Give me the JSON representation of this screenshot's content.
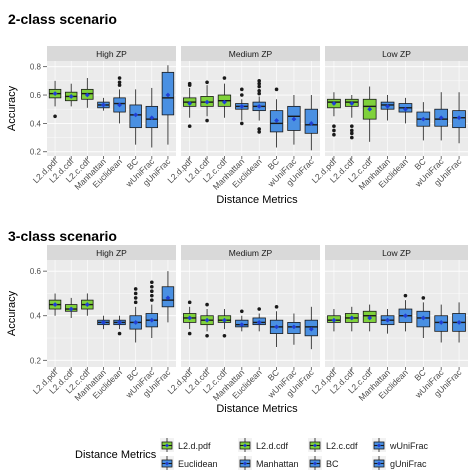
{
  "figure": {
    "legend_title": "Distance Metrics",
    "legend_items": [
      {
        "label": "L2.d.pdf",
        "color": "#7fd13b"
      },
      {
        "label": "L2.d.cdf",
        "color": "#7fd13b"
      },
      {
        "label": "L2.c.cdf",
        "color": "#7fd13b"
      },
      {
        "label": "wUniFrac",
        "color": "#4a90e2"
      },
      {
        "label": "Euclidean",
        "color": "#4a90e2"
      },
      {
        "label": "Manhattan",
        "color": "#4a90e2"
      },
      {
        "label": "BC",
        "color": "#4a90e2"
      },
      {
        "label": "gUniFrac",
        "color": "#4a90e2"
      }
    ],
    "colors": {
      "l2": "#7fd13b",
      "other": "#4a90e2",
      "strip_bg": "#d9d9d9",
      "panel_bg": "#ebebeb",
      "mean_marker": "#1f3fd6"
    }
  },
  "chart_data": [
    {
      "type": "box",
      "title": "2-class scenario",
      "xlabel": "Distance Metrics",
      "ylabel": "Accuracy",
      "ylim": [
        0.17,
        0.84
      ],
      "yticks": [
        0.2,
        0.4,
        0.6,
        0.8
      ],
      "facets": [
        "High ZP",
        "Medium ZP",
        "Low ZP"
      ],
      "categories": [
        "L2.d.pdf",
        "L2.d.cdf",
        "L2.c.cdf",
        "Manhattan",
        "Euclidean",
        "BC",
        "wUniFrac",
        "gUniFrac"
      ],
      "panels": [
        {
          "facet": "High ZP",
          "boxes": [
            {
              "min": 0.52,
              "q1": 0.58,
              "median": 0.61,
              "q3": 0.64,
              "max": 0.7,
              "mean": 0.61,
              "outliers": [
                0.45
              ]
            },
            {
              "min": 0.52,
              "q1": 0.56,
              "median": 0.59,
              "q3": 0.62,
              "max": 0.68,
              "mean": 0.59,
              "outliers": []
            },
            {
              "min": 0.51,
              "q1": 0.57,
              "median": 0.61,
              "q3": 0.64,
              "max": 0.72,
              "mean": 0.6,
              "outliers": []
            },
            {
              "min": 0.49,
              "q1": 0.51,
              "median": 0.53,
              "q3": 0.55,
              "max": 0.58,
              "mean": 0.53,
              "outliers": []
            },
            {
              "min": 0.4,
              "q1": 0.48,
              "median": 0.54,
              "q3": 0.58,
              "max": 0.64,
              "mean": 0.53,
              "outliers": [
                0.67,
                0.69,
                0.72
              ]
            },
            {
              "min": 0.25,
              "q1": 0.37,
              "median": 0.46,
              "q3": 0.53,
              "max": 0.64,
              "mean": 0.46,
              "outliers": []
            },
            {
              "min": 0.23,
              "q1": 0.37,
              "median": 0.43,
              "q3": 0.52,
              "max": 0.65,
              "mean": 0.44,
              "outliers": []
            },
            {
              "min": 0.25,
              "q1": 0.46,
              "median": 0.58,
              "q3": 0.76,
              "max": 0.81,
              "mean": 0.6,
              "outliers": []
            }
          ]
        },
        {
          "facet": "Medium ZP",
          "boxes": [
            {
              "min": 0.44,
              "q1": 0.52,
              "median": 0.55,
              "q3": 0.58,
              "max": 0.65,
              "mean": 0.54,
              "outliers": [
                0.67,
                0.68,
                0.38
              ]
            },
            {
              "min": 0.45,
              "q1": 0.52,
              "median": 0.55,
              "q3": 0.59,
              "max": 0.67,
              "mean": 0.55,
              "outliers": [
                0.69,
                0.42
              ]
            },
            {
              "min": 0.44,
              "q1": 0.52,
              "median": 0.56,
              "q3": 0.6,
              "max": 0.68,
              "mean": 0.55,
              "outliers": [
                0.72
              ]
            },
            {
              "min": 0.42,
              "q1": 0.5,
              "median": 0.52,
              "q3": 0.54,
              "max": 0.57,
              "mean": 0.52,
              "outliers": [
                0.6,
                0.64,
                0.4
              ]
            },
            {
              "min": 0.42,
              "q1": 0.49,
              "median": 0.52,
              "q3": 0.55,
              "max": 0.59,
              "mean": 0.52,
              "outliers": [
                0.61,
                0.63,
                0.66,
                0.68,
                0.7,
                0.36,
                0.34
              ]
            },
            {
              "min": 0.23,
              "q1": 0.34,
              "median": 0.4,
              "q3": 0.49,
              "max": 0.57,
              "mean": 0.42,
              "outliers": [
                0.64
              ]
            },
            {
              "min": 0.25,
              "q1": 0.35,
              "median": 0.45,
              "q3": 0.52,
              "max": 0.6,
              "mean": 0.43,
              "outliers": []
            },
            {
              "min": 0.21,
              "q1": 0.33,
              "median": 0.39,
              "q3": 0.5,
              "max": 0.6,
              "mean": 0.4,
              "outliers": []
            }
          ]
        },
        {
          "facet": "Low ZP",
          "boxes": [
            {
              "min": 0.45,
              "q1": 0.51,
              "median": 0.55,
              "q3": 0.57,
              "max": 0.62,
              "mean": 0.54,
              "outliers": [
                0.38,
                0.35,
                0.32
              ]
            },
            {
              "min": 0.44,
              "q1": 0.52,
              "median": 0.55,
              "q3": 0.57,
              "max": 0.6,
              "mean": 0.54,
              "outliers": [
                0.38,
                0.35,
                0.33,
                0.3
              ]
            },
            {
              "min": 0.27,
              "q1": 0.43,
              "median": 0.52,
              "q3": 0.57,
              "max": 0.66,
              "mean": 0.5,
              "outliers": []
            },
            {
              "min": 0.42,
              "q1": 0.5,
              "median": 0.53,
              "q3": 0.55,
              "max": 0.6,
              "mean": 0.52,
              "outliers": []
            },
            {
              "min": 0.4,
              "q1": 0.48,
              "median": 0.51,
              "q3": 0.54,
              "max": 0.58,
              "mean": 0.5,
              "outliers": []
            },
            {
              "min": 0.28,
              "q1": 0.38,
              "median": 0.43,
              "q3": 0.48,
              "max": 0.55,
              "mean": 0.43,
              "outliers": []
            },
            {
              "min": 0.28,
              "q1": 0.38,
              "median": 0.43,
              "q3": 0.5,
              "max": 0.62,
              "mean": 0.44,
              "outliers": []
            },
            {
              "min": 0.26,
              "q1": 0.37,
              "median": 0.44,
              "q3": 0.49,
              "max": 0.62,
              "mean": 0.44,
              "outliers": []
            }
          ]
        }
      ]
    },
    {
      "type": "box",
      "title": "3-class scenario",
      "xlabel": "Distance Metrics",
      "ylabel": "Accuracy",
      "ylim": [
        0.17,
        0.65
      ],
      "yticks": [
        0.2,
        0.4,
        0.6
      ],
      "facets": [
        "High ZP",
        "Medium ZP",
        "Low ZP"
      ],
      "categories": [
        "L2.d.pdf",
        "L2.d.cdf",
        "L2.c.cdf",
        "Manhattan",
        "Euclidean",
        "BC",
        "wUniFrac",
        "gUniFrac"
      ],
      "panels": [
        {
          "facet": "High ZP",
          "boxes": [
            {
              "min": 0.4,
              "q1": 0.43,
              "median": 0.45,
              "q3": 0.47,
              "max": 0.5,
              "mean": 0.45,
              "outliers": []
            },
            {
              "min": 0.39,
              "q1": 0.42,
              "median": 0.43,
              "q3": 0.45,
              "max": 0.48,
              "mean": 0.43,
              "outliers": []
            },
            {
              "min": 0.4,
              "q1": 0.43,
              "median": 0.45,
              "q3": 0.47,
              "max": 0.5,
              "mean": 0.45,
              "outliers": []
            },
            {
              "min": 0.34,
              "q1": 0.36,
              "median": 0.37,
              "q3": 0.38,
              "max": 0.4,
              "mean": 0.37,
              "outliers": []
            },
            {
              "min": 0.34,
              "q1": 0.36,
              "median": 0.37,
              "q3": 0.38,
              "max": 0.4,
              "mean": 0.37,
              "outliers": [
                0.32
              ]
            },
            {
              "min": 0.28,
              "q1": 0.34,
              "median": 0.37,
              "q3": 0.4,
              "max": 0.44,
              "mean": 0.37,
              "outliers": [
                0.46,
                0.48,
                0.5,
                0.52
              ]
            },
            {
              "min": 0.3,
              "q1": 0.35,
              "median": 0.38,
              "q3": 0.41,
              "max": 0.45,
              "mean": 0.38,
              "outliers": [
                0.47,
                0.49,
                0.51,
                0.53,
                0.55
              ]
            },
            {
              "min": 0.37,
              "q1": 0.44,
              "median": 0.47,
              "q3": 0.53,
              "max": 0.6,
              "mean": 0.48,
              "outliers": []
            }
          ]
        },
        {
          "facet": "Medium ZP",
          "boxes": [
            {
              "min": 0.34,
              "q1": 0.37,
              "median": 0.39,
              "q3": 0.41,
              "max": 0.44,
              "mean": 0.39,
              "outliers": [
                0.46,
                0.32
              ]
            },
            {
              "min": 0.33,
              "q1": 0.36,
              "median": 0.38,
              "q3": 0.4,
              "max": 0.43,
              "mean": 0.38,
              "outliers": [
                0.45,
                0.31
              ]
            },
            {
              "min": 0.34,
              "q1": 0.37,
              "median": 0.38,
              "q3": 0.4,
              "max": 0.43,
              "mean": 0.38,
              "outliers": [
                0.31
              ]
            },
            {
              "min": 0.33,
              "q1": 0.35,
              "median": 0.36,
              "q3": 0.38,
              "max": 0.4,
              "mean": 0.36,
              "outliers": [
                0.42
              ]
            },
            {
              "min": 0.33,
              "q1": 0.36,
              "median": 0.37,
              "q3": 0.39,
              "max": 0.41,
              "mean": 0.37,
              "outliers": [
                0.43
              ]
            },
            {
              "min": 0.26,
              "q1": 0.32,
              "median": 0.35,
              "q3": 0.38,
              "max": 0.42,
              "mean": 0.35,
              "outliers": [
                0.44
              ]
            },
            {
              "min": 0.27,
              "q1": 0.32,
              "median": 0.35,
              "q3": 0.37,
              "max": 0.41,
              "mean": 0.35,
              "outliers": []
            },
            {
              "min": 0.25,
              "q1": 0.31,
              "median": 0.35,
              "q3": 0.38,
              "max": 0.44,
              "mean": 0.34,
              "outliers": []
            }
          ]
        },
        {
          "facet": "Low ZP",
          "boxes": [
            {
              "min": 0.33,
              "q1": 0.37,
              "median": 0.38,
              "q3": 0.4,
              "max": 0.43,
              "mean": 0.38,
              "outliers": []
            },
            {
              "min": 0.33,
              "q1": 0.37,
              "median": 0.39,
              "q3": 0.41,
              "max": 0.44,
              "mean": 0.39,
              "outliers": []
            },
            {
              "min": 0.33,
              "q1": 0.37,
              "median": 0.4,
              "q3": 0.42,
              "max": 0.45,
              "mean": 0.39,
              "outliers": []
            },
            {
              "min": 0.32,
              "q1": 0.36,
              "median": 0.38,
              "q3": 0.4,
              "max": 0.43,
              "mean": 0.38,
              "outliers": []
            },
            {
              "min": 0.33,
              "q1": 0.37,
              "median": 0.4,
              "q3": 0.43,
              "max": 0.47,
              "mean": 0.4,
              "outliers": [
                0.49
              ]
            },
            {
              "min": 0.3,
              "q1": 0.35,
              "median": 0.39,
              "q3": 0.42,
              "max": 0.46,
              "mean": 0.39,
              "outliers": [
                0.48
              ]
            },
            {
              "min": 0.28,
              "q1": 0.33,
              "median": 0.37,
              "q3": 0.4,
              "max": 0.45,
              "mean": 0.37,
              "outliers": []
            },
            {
              "min": 0.28,
              "q1": 0.33,
              "median": 0.37,
              "q3": 0.41,
              "max": 0.46,
              "mean": 0.37,
              "outliers": []
            }
          ]
        }
      ]
    }
  ]
}
